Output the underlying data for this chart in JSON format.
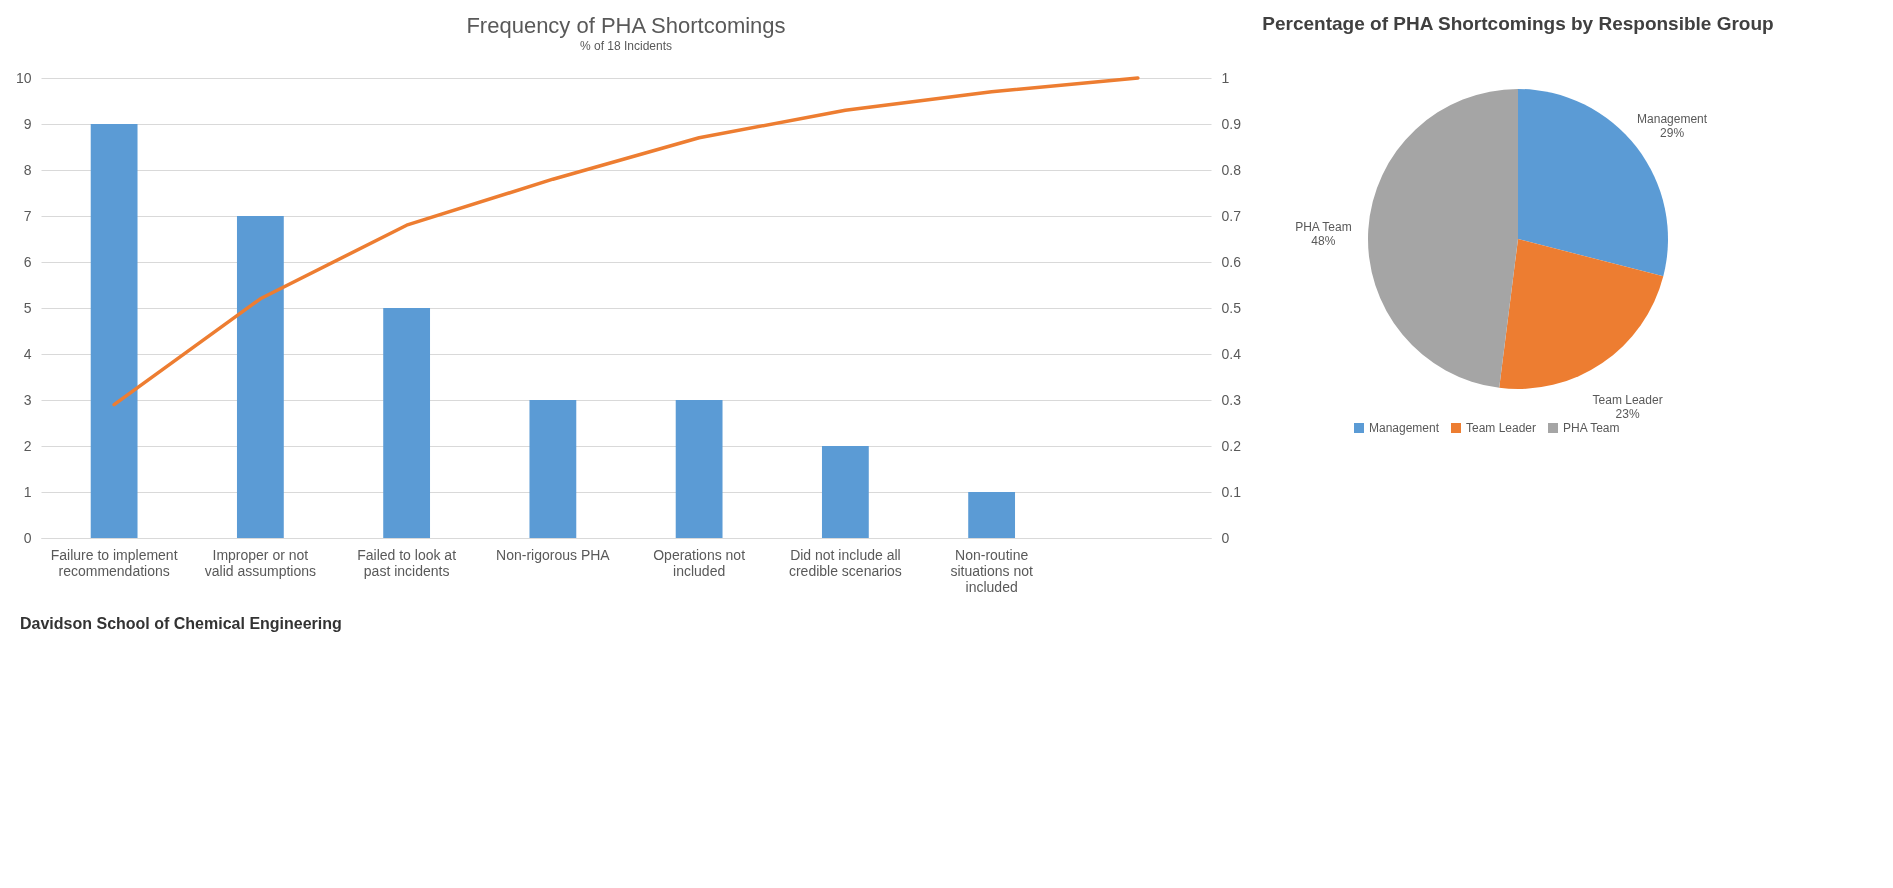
{
  "chart_data": [
    {
      "type": "bar",
      "title": "Frequency of PHA Shortcomings",
      "subtitle": "% of 18 Incidents",
      "categories": [
        "Failure to implement recommendations",
        "Improper or not valid assumptions",
        "Failed to look at past incidents",
        "Non-rigorous PHA",
        "Operations not included",
        "Did not include all credible scenarios",
        "Non-routine situations not included",
        null
      ],
      "series": [
        {
          "type": "bar",
          "color": "#5b9bd5",
          "values": [
            9,
            7,
            5,
            3,
            3,
            2,
            1,
            null
          ]
        },
        {
          "type": "line",
          "color": "#ed7d31",
          "axis": "y2",
          "values": [
            0.29,
            0.52,
            0.68,
            0.78,
            0.87,
            0.93,
            0.97,
            1.0
          ]
        }
      ],
      "ylim": [
        0,
        10
      ],
      "yticks": [
        0,
        1,
        2,
        3,
        4,
        5,
        6,
        7,
        8,
        9,
        10
      ],
      "y2lim": [
        0,
        1
      ],
      "y2ticks": [
        0,
        0.1,
        0.2,
        0.3,
        0.4,
        0.5,
        0.6,
        0.7,
        0.8,
        0.9,
        1
      ],
      "grid": "y",
      "annotations": [
        "Davidson School of Chemical Engineering"
      ]
    },
    {
      "type": "pie",
      "title": "Percentage of PHA Shortcomings by Responsible Group",
      "categories": [
        "Management",
        "Team Leader",
        "PHA Team"
      ],
      "values": [
        29,
        23,
        48
      ],
      "colors": [
        "#5b9bd5",
        "#ed7d31",
        "#a5a5a5"
      ],
      "value_labels": [
        "29%",
        "23%",
        "48%"
      ],
      "legend": "bottom"
    }
  ]
}
